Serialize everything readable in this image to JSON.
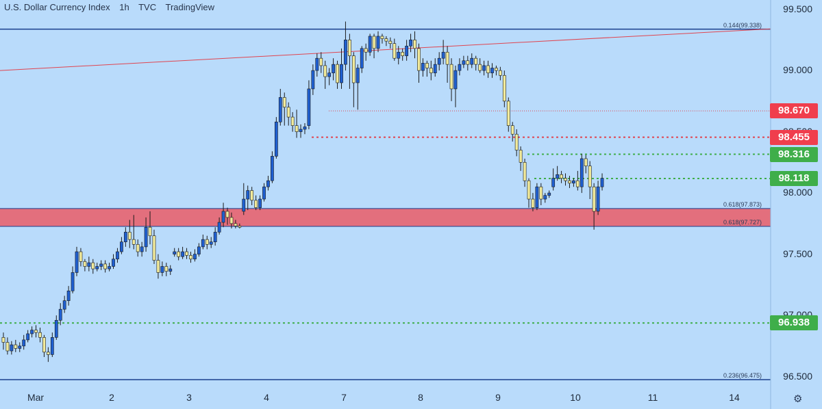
{
  "header": {
    "symbol": "U.S. Dollar Currency Index",
    "interval": "1h",
    "exchange": "TVC",
    "source": "TradingView"
  },
  "chart_data": {
    "type": "candlestick",
    "ylim": [
      96.47,
      99.52
    ],
    "y_ticks": [
      "99.500",
      "99.000",
      "98.500",
      "98.000",
      "97.500",
      "97.000",
      "96.500"
    ],
    "x_ticks": [
      "Mar",
      "2",
      "3",
      "4",
      "7",
      "8",
      "9",
      "10",
      "11",
      "14"
    ],
    "price_badges": [
      {
        "label": "98.670",
        "value": 98.67,
        "color": "#f03e4d"
      },
      {
        "label": "98.455",
        "value": 98.455,
        "color": "#f03e4d"
      },
      {
        "label": "98.316",
        "value": 98.316,
        "color": "#3fae4a"
      },
      {
        "label": "98.118",
        "value": 98.118,
        "color": "#3fae4a"
      },
      {
        "label": "96.938",
        "value": 96.938,
        "color": "#3fae4a"
      }
    ],
    "fib_labels": [
      {
        "label": "0.144(99.338)",
        "value": 99.338
      },
      {
        "label": "0.618(97.873)",
        "value": 97.873
      },
      {
        "label": "0.618(97.727)",
        "value": 97.727
      },
      {
        "label": "0.236(96.475)",
        "value": 96.475
      }
    ],
    "support_zone": {
      "low": 97.727,
      "high": 97.873,
      "color": "#e8636f"
    },
    "trendline": {
      "from": {
        "x": "start",
        "y": 99.0
      },
      "to": {
        "x": "end",
        "y": 99.34
      },
      "color": "#e0444f"
    },
    "colors": {
      "up": "#1f5fd0",
      "down": "#f2eb9c",
      "wick": "#1a1a1a"
    },
    "candles": [
      [
        96.82,
        96.78,
        96.72,
        96.86
      ],
      [
        96.78,
        96.71,
        96.68,
        96.82
      ],
      [
        96.71,
        96.76,
        96.68,
        96.79
      ],
      [
        96.76,
        96.73,
        96.7,
        96.8
      ],
      [
        96.73,
        96.75,
        96.7,
        96.78
      ],
      [
        96.75,
        96.8,
        96.72,
        96.84
      ],
      [
        96.8,
        96.85,
        96.78,
        96.88
      ],
      [
        96.85,
        96.88,
        96.82,
        96.91
      ],
      [
        96.88,
        96.86,
        96.82,
        96.92
      ],
      [
        96.86,
        96.82,
        96.78,
        96.9
      ],
      [
        96.82,
        96.7,
        96.66,
        96.84
      ],
      [
        96.7,
        96.68,
        96.62,
        96.74
      ],
      [
        96.68,
        96.82,
        96.66,
        96.86
      ],
      [
        96.82,
        96.96,
        96.8,
        97.0
      ],
      [
        96.96,
        97.05,
        96.92,
        97.1
      ],
      [
        97.05,
        97.12,
        97.02,
        97.16
      ],
      [
        97.12,
        97.2,
        97.08,
        97.24
      ],
      [
        97.2,
        97.35,
        97.18,
        97.4
      ],
      [
        97.35,
        97.52,
        97.32,
        97.56
      ],
      [
        97.52,
        97.44,
        97.4,
        97.55
      ],
      [
        97.44,
        97.4,
        97.36,
        97.46
      ],
      [
        97.4,
        97.43,
        97.36,
        97.48
      ],
      [
        97.43,
        97.38,
        97.34,
        97.46
      ],
      [
        97.38,
        97.4,
        97.36,
        97.43
      ],
      [
        97.4,
        97.42,
        97.37,
        97.45
      ],
      [
        97.42,
        97.38,
        97.35,
        97.45
      ],
      [
        97.38,
        97.4,
        97.36,
        97.43
      ],
      [
        97.4,
        97.46,
        97.38,
        97.5
      ],
      [
        97.46,
        97.52,
        97.43,
        97.55
      ],
      [
        97.52,
        97.6,
        97.5,
        97.64
      ],
      [
        97.6,
        97.68,
        97.56,
        97.72
      ],
      [
        97.68,
        97.62,
        97.55,
        97.78
      ],
      [
        97.62,
        97.58,
        97.54,
        97.82
      ],
      [
        97.58,
        97.52,
        97.48,
        97.62
      ],
      [
        97.52,
        97.56,
        97.48,
        97.6
      ],
      [
        97.56,
        97.72,
        97.52,
        97.8
      ],
      [
        97.72,
        97.65,
        97.58,
        97.85
      ],
      [
        97.65,
        97.45,
        97.42,
        97.7
      ],
      [
        97.45,
        97.35,
        97.3,
        97.5
      ],
      [
        97.35,
        97.4,
        97.32,
        97.44
      ],
      [
        97.4,
        97.36,
        97.32,
        97.43
      ],
      [
        97.36,
        97.38,
        97.33,
        97.41
      ],
      [
        97.5,
        97.52,
        97.48,
        97.55
      ],
      [
        97.52,
        97.48,
        97.45,
        97.55
      ],
      [
        97.48,
        97.52,
        97.46,
        97.56
      ],
      [
        97.52,
        97.49,
        97.46,
        97.55
      ],
      [
        97.49,
        97.46,
        97.43,
        97.52
      ],
      [
        97.46,
        97.5,
        97.44,
        97.54
      ],
      [
        97.5,
        97.56,
        97.48,
        97.59
      ],
      [
        97.56,
        97.62,
        97.54,
        97.66
      ],
      [
        97.62,
        97.58,
        97.54,
        97.65
      ],
      [
        97.58,
        97.6,
        97.55,
        97.64
      ],
      [
        97.6,
        97.68,
        97.57,
        97.72
      ],
      [
        97.68,
        97.76,
        97.66,
        97.8
      ],
      [
        97.76,
        97.85,
        97.72,
        97.92
      ],
      [
        97.85,
        97.8,
        97.74,
        97.88
      ],
      [
        97.8,
        97.75,
        97.71,
        97.84
      ],
      [
        97.75,
        97.73,
        97.71,
        97.78
      ],
      [
        97.73,
        97.72,
        97.71,
        97.75
      ],
      [
        97.85,
        97.95,
        97.82,
        98.08
      ],
      [
        97.95,
        98.02,
        97.86,
        98.06
      ],
      [
        98.02,
        97.94,
        97.9,
        98.05
      ],
      [
        97.94,
        97.88,
        97.86,
        97.98
      ],
      [
        97.88,
        97.95,
        97.86,
        97.98
      ],
      [
        97.95,
        98.05,
        97.93,
        98.08
      ],
      [
        98.05,
        98.1,
        98.02,
        98.14
      ],
      [
        98.1,
        98.3,
        98.08,
        98.34
      ],
      [
        98.3,
        98.58,
        98.28,
        98.62
      ],
      [
        98.58,
        98.78,
        98.55,
        98.85
      ],
      [
        98.78,
        98.7,
        98.55,
        98.82
      ],
      [
        98.7,
        98.62,
        98.55,
        98.74
      ],
      [
        98.62,
        98.55,
        98.5,
        98.66
      ],
      [
        98.55,
        98.5,
        98.45,
        98.68
      ],
      [
        98.5,
        98.52,
        98.45,
        98.56
      ],
      [
        98.52,
        98.54,
        98.48,
        98.57
      ],
      [
        98.55,
        98.85,
        98.52,
        98.92
      ],
      [
        98.85,
        99.0,
        98.8,
        99.05
      ],
      [
        99.0,
        99.1,
        98.95,
        99.14
      ],
      [
        99.1,
        99.04,
        98.98,
        99.15
      ],
      [
        99.04,
        98.95,
        98.85,
        99.08
      ],
      [
        98.95,
        98.98,
        98.88,
        99.02
      ],
      [
        98.98,
        99.05,
        98.92,
        99.1
      ],
      [
        99.05,
        98.9,
        98.85,
        99.08
      ],
      [
        98.9,
        99.05,
        98.85,
        99.18
      ],
      [
        99.05,
        99.25,
        99.0,
        99.4
      ],
      [
        99.25,
        99.12,
        98.85,
        99.3
      ],
      [
        99.12,
        98.9,
        98.7,
        99.15
      ],
      [
        98.9,
        99.02,
        98.68,
        99.05
      ],
      [
        99.02,
        99.18,
        98.98,
        99.2
      ],
      [
        99.18,
        99.15,
        99.08,
        99.22
      ],
      [
        99.15,
        99.28,
        99.12,
        99.3
      ],
      [
        99.28,
        99.18,
        99.1,
        99.3
      ],
      [
        99.18,
        99.28,
        99.15,
        99.32
      ],
      [
        99.28,
        99.26,
        99.22,
        99.3
      ],
      [
        99.26,
        99.24,
        99.2,
        99.28
      ],
      [
        99.24,
        99.22,
        99.18,
        99.27
      ],
      [
        99.22,
        99.1,
        99.08,
        99.26
      ],
      [
        99.1,
        99.15,
        99.05,
        99.2
      ],
      [
        99.15,
        99.12,
        99.08,
        99.18
      ],
      [
        99.12,
        99.2,
        99.08,
        99.25
      ],
      [
        99.2,
        99.25,
        99.15,
        99.3
      ],
      [
        99.25,
        99.18,
        99.1,
        99.32
      ],
      [
        99.18,
        99.0,
        98.9,
        99.22
      ],
      [
        99.0,
        99.06,
        98.95,
        99.1
      ],
      [
        99.06,
        99.02,
        98.95,
        99.08
      ],
      [
        99.02,
        98.98,
        98.92,
        99.08
      ],
      [
        98.98,
        99.05,
        98.95,
        99.1
      ],
      [
        99.05,
        99.1,
        99.0,
        99.15
      ],
      [
        99.1,
        99.15,
        99.05,
        99.25
      ],
      [
        99.15,
        99.05,
        98.9,
        99.2
      ],
      [
        99.05,
        98.85,
        98.75,
        99.1
      ],
      [
        98.85,
        99.0,
        98.7,
        99.04
      ],
      [
        99.0,
        99.05,
        98.96,
        99.1
      ],
      [
        99.05,
        99.08,
        99.02,
        99.12
      ],
      [
        99.08,
        99.05,
        99.0,
        99.12
      ],
      [
        99.05,
        99.1,
        99.02,
        99.14
      ],
      [
        99.1,
        99.05,
        99.0,
        99.12
      ],
      [
        99.05,
        99.0,
        98.98,
        99.1
      ],
      [
        99.0,
        99.04,
        98.96,
        99.08
      ],
      [
        99.04,
        98.98,
        98.94,
        99.08
      ],
      [
        98.98,
        99.02,
        98.94,
        99.06
      ],
      [
        99.02,
        99.0,
        98.96,
        99.04
      ],
      [
        99.0,
        98.96,
        98.92,
        99.03
      ],
      [
        98.96,
        98.75,
        98.7,
        99.0
      ],
      [
        98.75,
        98.55,
        98.5,
        98.78
      ],
      [
        98.55,
        98.48,
        98.42,
        98.58
      ],
      [
        98.48,
        98.35,
        98.3,
        98.52
      ],
      [
        98.35,
        98.25,
        98.18,
        98.38
      ],
      [
        98.25,
        98.1,
        98.05,
        98.28
      ],
      [
        98.1,
        97.95,
        97.88,
        98.12
      ],
      [
        97.95,
        97.88,
        97.85,
        98.0
      ],
      [
        97.88,
        98.05,
        97.86,
        98.08
      ],
      [
        98.05,
        97.95,
        97.9,
        98.08
      ],
      [
        97.95,
        97.98,
        97.92,
        98.0
      ],
      [
        97.98,
        98.0,
        97.96,
        98.02
      ],
      [
        98.05,
        98.12,
        98.02,
        98.2
      ],
      [
        98.12,
        98.15,
        98.1,
        98.22
      ],
      [
        98.15,
        98.12,
        98.08,
        98.18
      ],
      [
        98.12,
        98.1,
        98.06,
        98.16
      ],
      [
        98.1,
        98.08,
        98.04,
        98.14
      ],
      [
        98.08,
        98.1,
        98.05,
        98.12
      ],
      [
        98.1,
        98.05,
        98.02,
        98.18
      ],
      [
        98.05,
        98.28,
        98.0,
        98.32
      ],
      [
        98.28,
        98.22,
        98.16,
        98.31
      ],
      [
        98.22,
        98.05,
        97.95,
        98.26
      ],
      [
        98.05,
        97.85,
        97.7,
        98.08
      ],
      [
        97.85,
        98.05,
        97.82,
        98.1
      ],
      [
        98.05,
        98.12,
        98.02,
        98.16
      ]
    ]
  }
}
